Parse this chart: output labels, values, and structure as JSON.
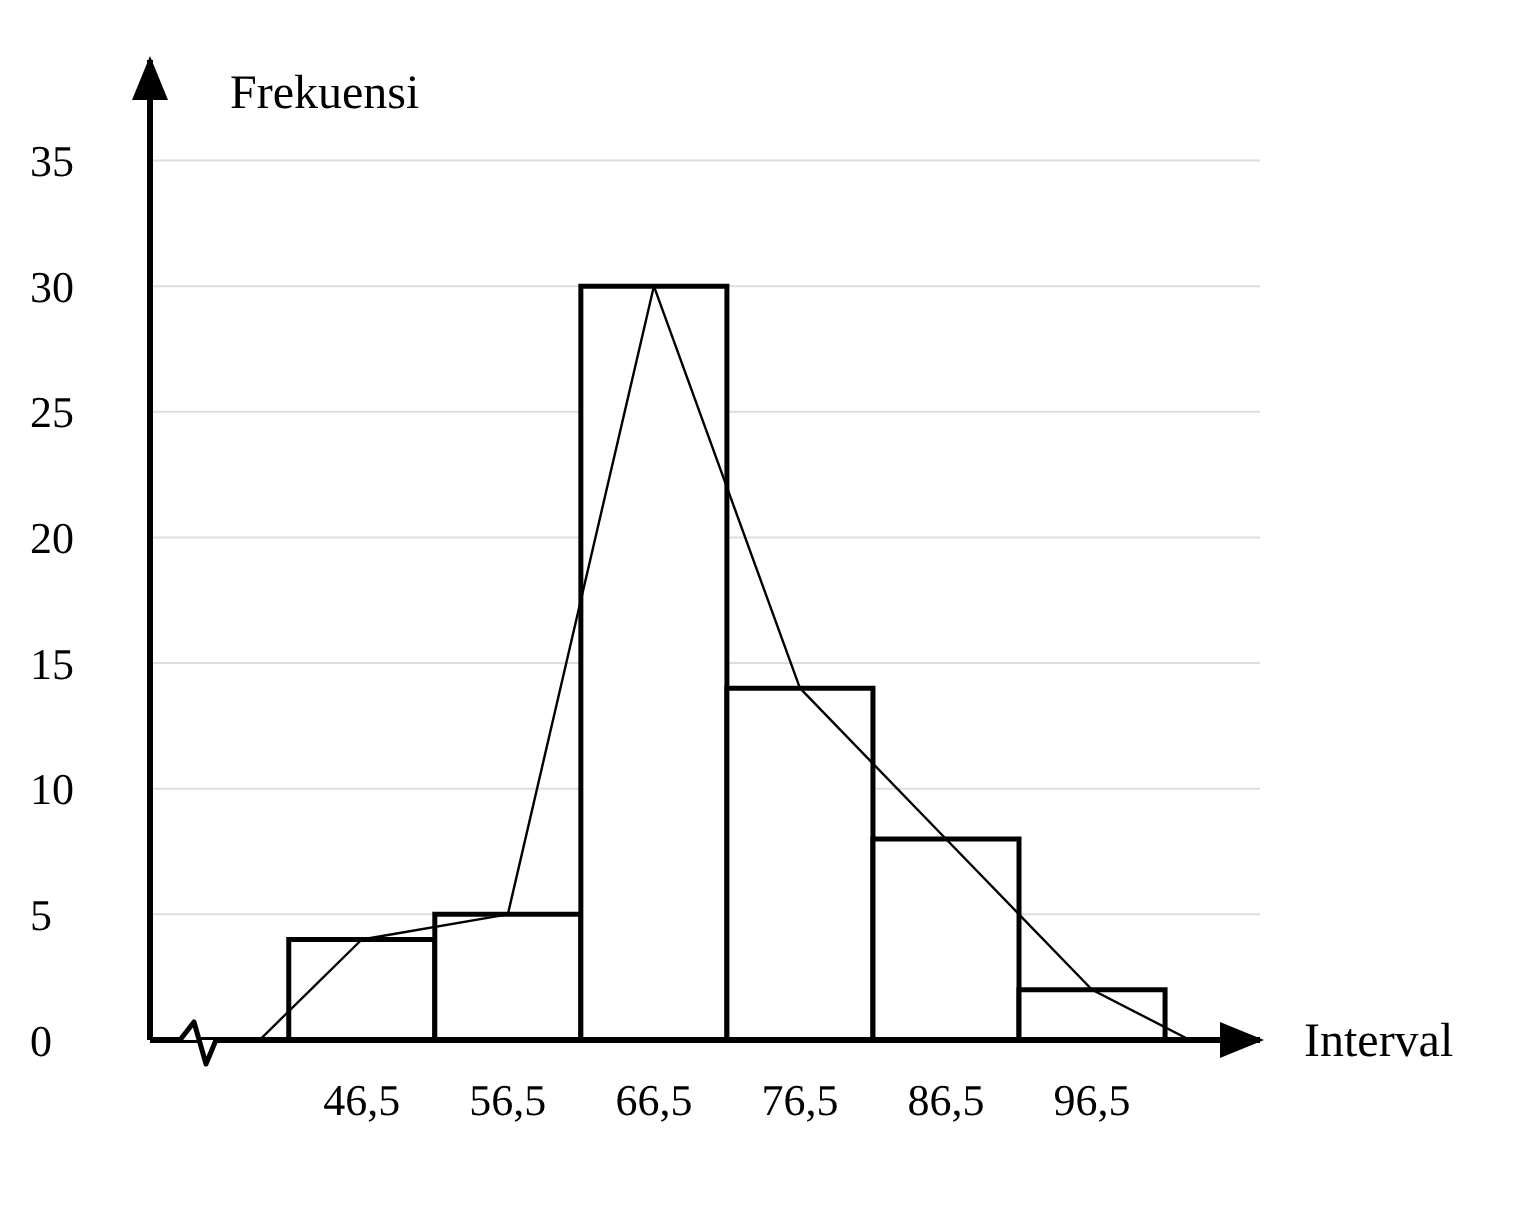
{
  "chart_data": {
    "type": "histogram",
    "xlabel": "Interval",
    "ylabel": "Frekuensi",
    "bins": [
      41.5,
      51.5,
      61.5,
      71.5,
      81.5,
      91.5,
      101.5
    ],
    "values": [
      4,
      5,
      30,
      14,
      8,
      2
    ],
    "color": "#ffffff",
    "series": [
      {
        "type": "line",
        "color": "#000000",
        "x": [
          39.5,
          46.5,
          56.5,
          66.5,
          76.5,
          86.5,
          96.5,
          103.2
        ],
        "values": [
          0,
          4,
          5,
          30,
          14,
          8,
          2,
          0
        ]
      }
    ],
    "xlim": [
      32,
      108
    ],
    "ylim": [
      0,
      39
    ],
    "xticks": [
      {
        "value": 46.5,
        "label": "46,5"
      },
      {
        "value": 56.5,
        "label": "56,5"
      },
      {
        "value": 66.5,
        "label": "66,5"
      },
      {
        "value": 76.5,
        "label": "76,5"
      },
      {
        "value": 86.5,
        "label": "86,5"
      },
      {
        "value": 96.5,
        "label": "96,5"
      }
    ],
    "yticks": [
      0,
      5,
      10,
      15,
      20,
      25,
      30,
      35
    ],
    "grid": "y"
  }
}
